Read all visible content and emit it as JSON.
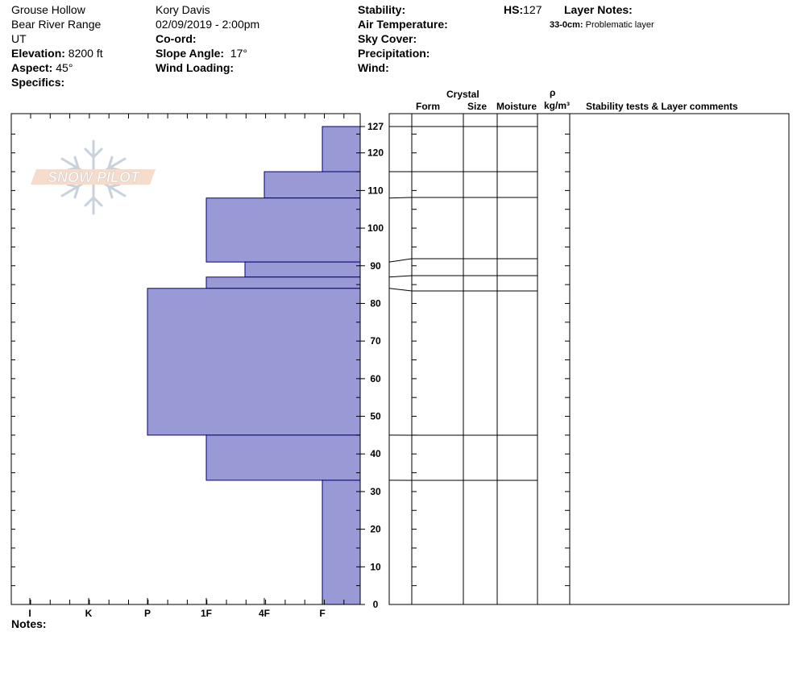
{
  "header": {
    "location": "Grouse Hollow",
    "range": "Bear River Range",
    "state": "UT",
    "elevation_label": "Elevation:",
    "elevation_value": "8200 ft",
    "aspect_label": "Aspect:",
    "aspect_value": "45°",
    "specifics_label": "Specifics:",
    "observer": "Kory Davis",
    "datetime": "02/09/2019 - 2:00pm",
    "coord_label": "Co-ord:",
    "slope_label": "Slope Angle:",
    "slope_value": "17°",
    "wind_loading_label": "Wind Loading:",
    "stability_label": "Stability:",
    "air_temp_label": "Air Temperature:",
    "sky_cover_label": "Sky Cover:",
    "precip_label": "Precipitation:",
    "wind_label": "Wind:",
    "hs_label": "HS:",
    "hs_value": "127",
    "layer_notes_label": "Layer Notes:",
    "layer_note_depth": "33-0cm:",
    "layer_note_text": "Problematic layer",
    "notes_label": "Notes:"
  },
  "logo": {
    "text": "SNOW PILOT"
  },
  "table_headers": {
    "crystal": "Crystal",
    "form": "Form",
    "size": "Size",
    "moisture": "Moisture",
    "rho": "ρ",
    "density": "kg/m³",
    "comments": "Stability tests & Layer comments"
  },
  "chart_data": {
    "type": "bar",
    "orientation": "horizontal",
    "title": "",
    "ylabel": "",
    "xlabel": "",
    "ylim": [
      0,
      127
    ],
    "y_ticks": [
      0,
      10,
      20,
      30,
      40,
      50,
      60,
      70,
      80,
      90,
      100,
      110,
      120,
      127
    ],
    "x_categories": [
      "I",
      "K",
      "P",
      "1F",
      "4F",
      "F"
    ],
    "hardness_scale": {
      "F": 1,
      "4F": 2,
      "1F": 3,
      "P": 4,
      "K": 5,
      "I": 6
    },
    "fill_color": "#9999d6",
    "edge_color": "#000080",
    "layers": [
      {
        "bottom": 115,
        "top": 127,
        "hardness": "F"
      },
      {
        "bottom": 108,
        "top": 115,
        "hardness": "4F"
      },
      {
        "bottom": 91,
        "top": 108,
        "hardness": "1F"
      },
      {
        "bottom": 87,
        "top": 91,
        "hardness": "4F-"
      },
      {
        "bottom": 84,
        "top": 87,
        "hardness": "1F"
      },
      {
        "bottom": 45,
        "top": 84,
        "hardness": "P"
      },
      {
        "bottom": 33,
        "top": 45,
        "hardness": "1F"
      },
      {
        "bottom": 0,
        "top": 33,
        "hardness": "F"
      }
    ],
    "layer_boundaries": [
      127,
      115,
      108,
      91,
      87,
      84,
      45,
      33
    ]
  }
}
